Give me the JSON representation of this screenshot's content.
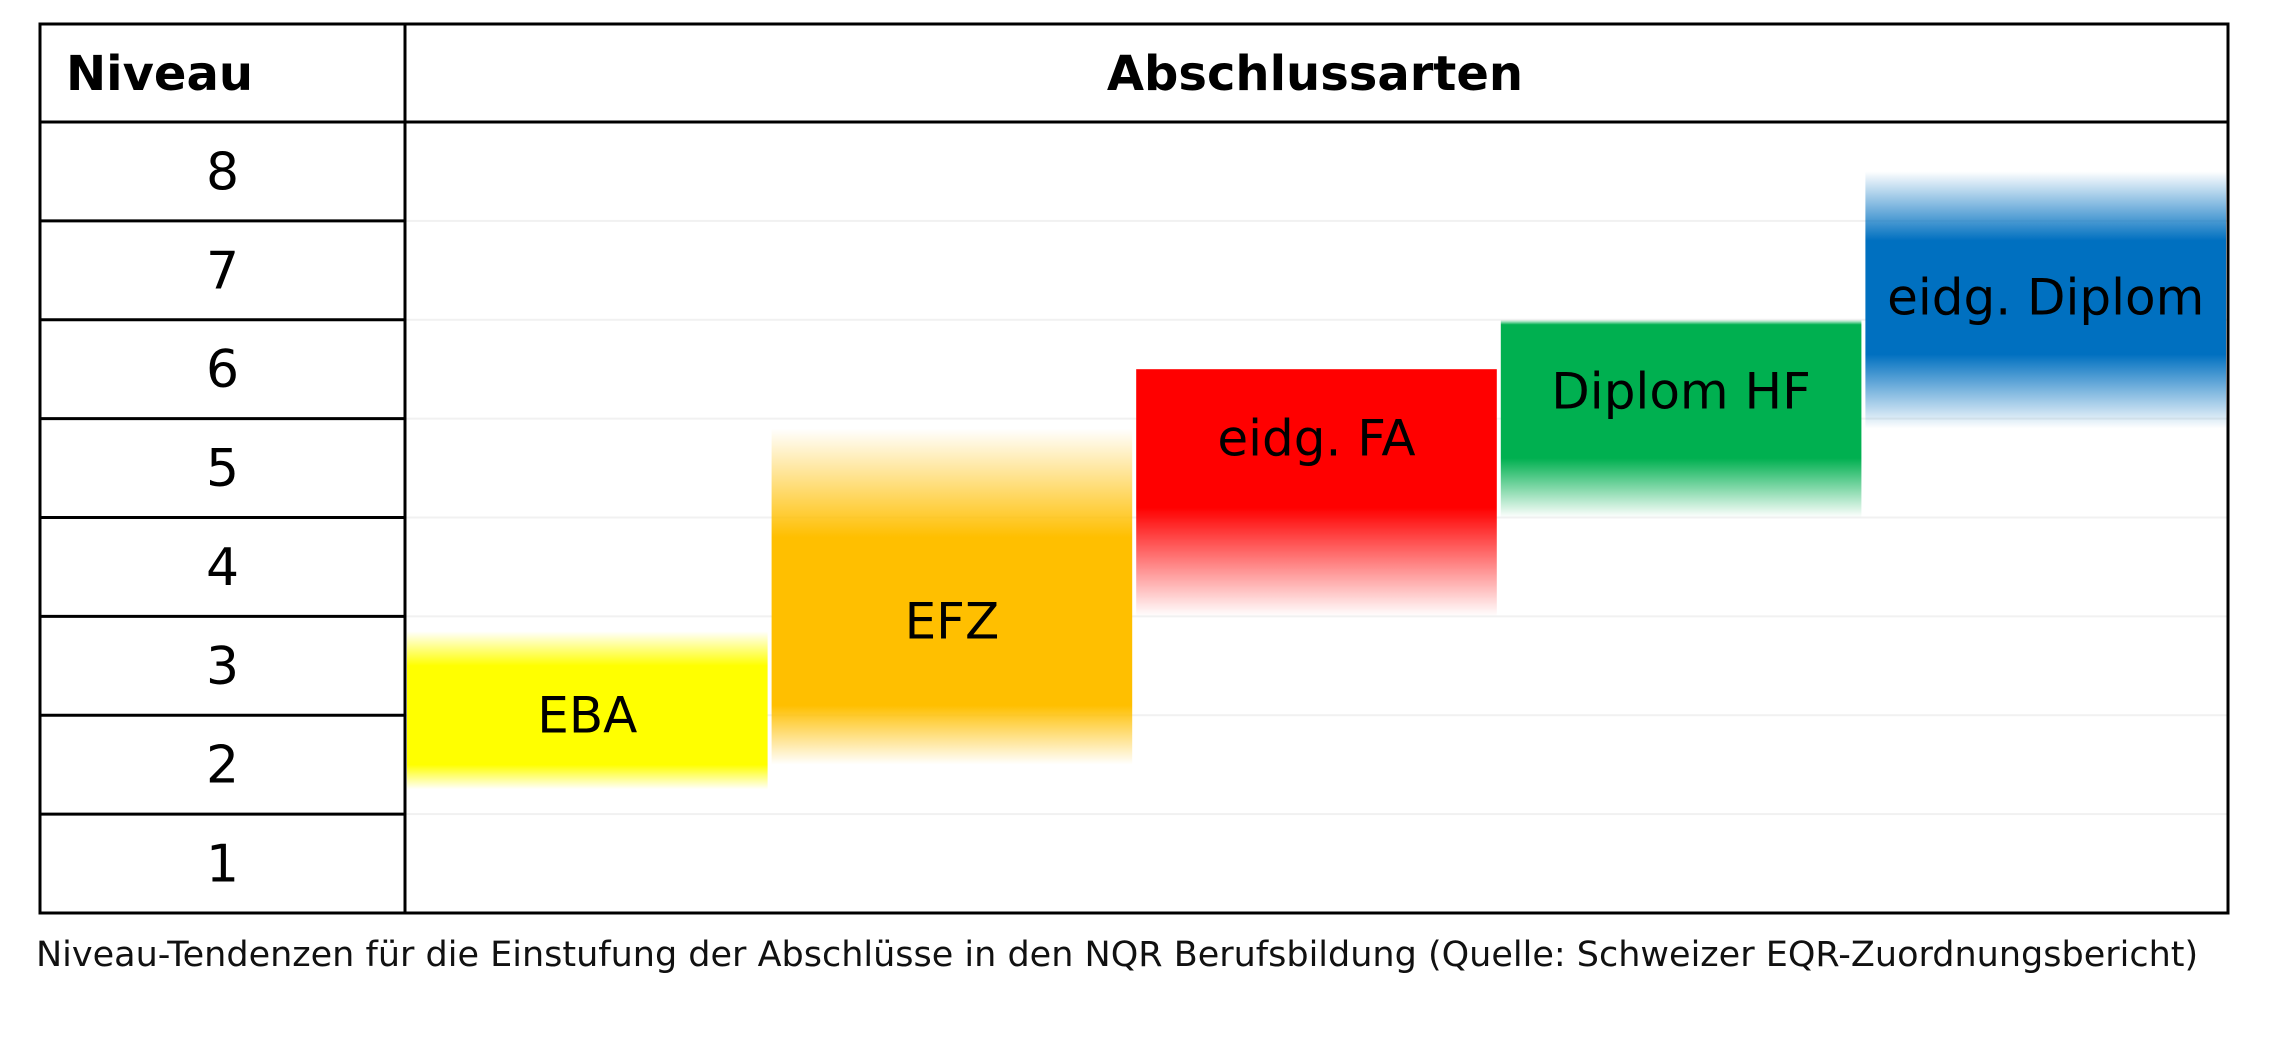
{
  "table": {
    "header_level": "Niveau",
    "header_types": "Abschlussarten",
    "levels": [
      "8",
      "7",
      "6",
      "5",
      "4",
      "3",
      "2",
      "1"
    ]
  },
  "bands": [
    {
      "label": "EBA",
      "core_from": 2.0,
      "core_to": 3.0,
      "fade_from": 1.75,
      "fade_to": 3.35,
      "color": "#ffff00"
    },
    {
      "label": "EFZ",
      "core_from": 2.6,
      "core_to": 4.3,
      "fade_from": 2.0,
      "fade_to": 5.4,
      "color": "#ffbf00"
    },
    {
      "label": "eidg. FA",
      "core_from": 4.6,
      "core_to": 6.0,
      "fade_from": 3.5,
      "fade_to": 6.0,
      "color": "#ff0000"
    },
    {
      "label": "Diplom HF",
      "core_from": 5.1,
      "core_to": 6.45,
      "fade_from": 4.5,
      "fade_to": 6.5,
      "color": "#00b050"
    },
    {
      "label": "eidg. Diplom",
      "core_from": 6.15,
      "core_to": 7.3,
      "fade_from": 5.4,
      "fade_to": 8.0,
      "color": "#0070c0"
    }
  ],
  "caption": "Niveau-Tendenzen für die Einstufung der Abschlüsse in den NQR Berufsbildung (Quelle: Schweizer EQR-Zuordnungsbericht)"
}
